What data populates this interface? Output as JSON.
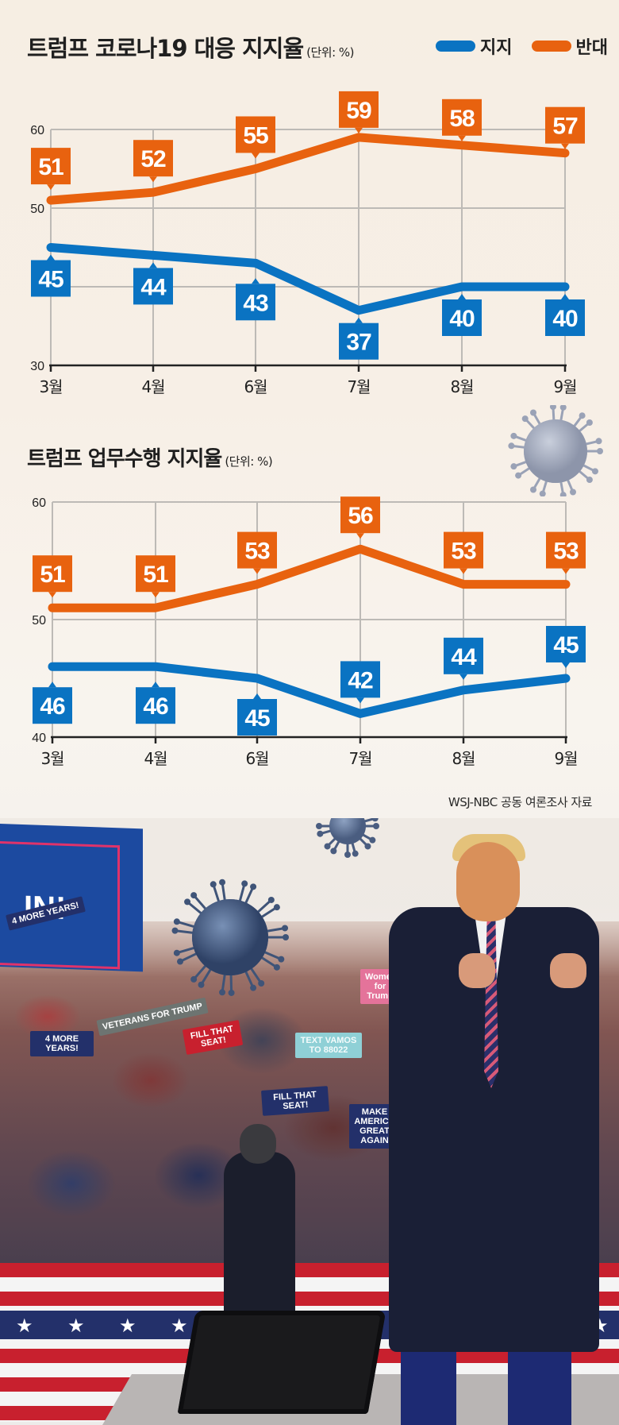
{
  "legend": {
    "support_label": "지지",
    "oppose_label": "반대",
    "support_color": "#0a73c2",
    "oppose_color": "#e8620f"
  },
  "chart1": {
    "title": "트럼프 코로나19 대응 지지율",
    "unit": "(단위: %)"
  },
  "chart2": {
    "title": "트럼프 업무수행 지지율",
    "unit": "(단위: %)"
  },
  "source": "WSJ-NBC 공동 여론조사 자료",
  "photo": {
    "banner_text": "IN!",
    "signs": [
      "4 MORE YEARS!",
      "VETERANS FOR TRUMP",
      "4 MORE YEARS!",
      "FILL THAT SEAT!",
      "TEXT VAMOS TO 88022",
      "FILL THAT SEAT!",
      "MAKE AMERICA GREAT AGAIN",
      "Women for Trump"
    ]
  },
  "chart_data": [
    {
      "type": "line",
      "title": "트럼프 코로나19 대응 지지율",
      "subtitle": "(단위: %)",
      "categories": [
        "3월",
        "4월",
        "6월",
        "7월",
        "8월",
        "9월"
      ],
      "series": [
        {
          "name": "지지",
          "color": "#0a73c2",
          "values": [
            45,
            44,
            43,
            37,
            40,
            40
          ]
        },
        {
          "name": "반대",
          "color": "#e8620f",
          "values": [
            51,
            52,
            55,
            59,
            58,
            57
          ]
        }
      ],
      "xlabel": "",
      "ylabel": "",
      "yticks": [
        30,
        50,
        60
      ],
      "ylim": [
        30,
        60
      ],
      "grid": true,
      "legend_position": "top-right"
    },
    {
      "type": "line",
      "title": "트럼프 업무수행 지지율",
      "subtitle": "(단위: %)",
      "categories": [
        "3월",
        "4월",
        "6월",
        "7월",
        "8월",
        "9월"
      ],
      "series": [
        {
          "name": "지지",
          "color": "#0a73c2",
          "values": [
            46,
            46,
            45,
            42,
            44,
            45
          ]
        },
        {
          "name": "반대",
          "color": "#e8620f",
          "values": [
            51,
            51,
            53,
            56,
            53,
            53
          ]
        }
      ],
      "xlabel": "",
      "ylabel": "",
      "yticks": [
        40,
        50,
        60
      ],
      "ylim": [
        40,
        60
      ],
      "grid": true,
      "annotation": "WSJ-NBC 공동 여론조사 자료"
    }
  ]
}
